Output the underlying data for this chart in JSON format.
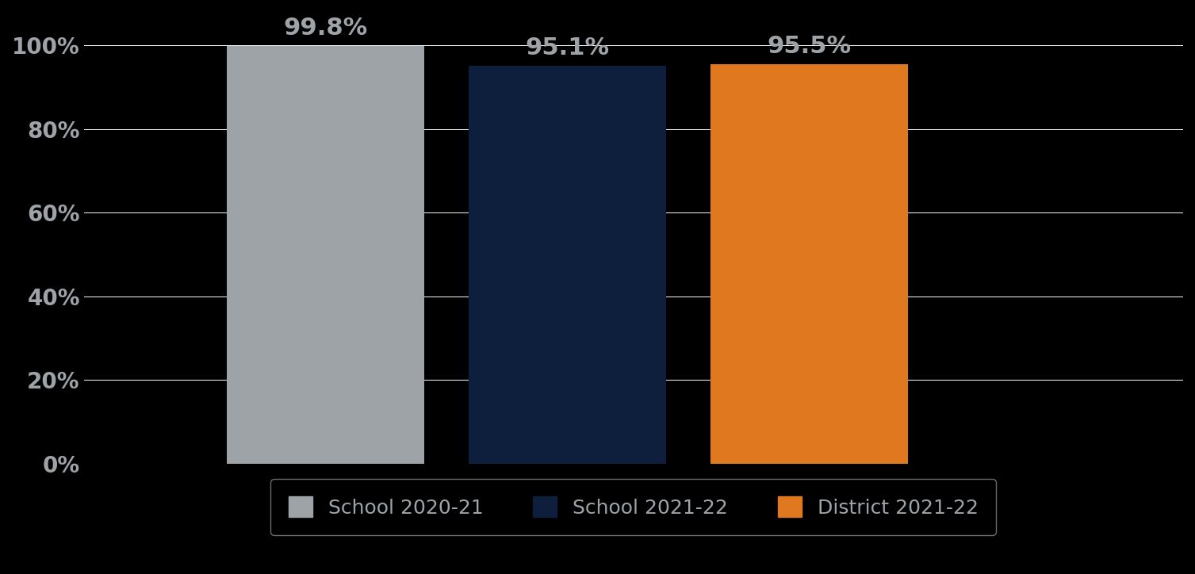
{
  "categories": [
    "School 2020-21",
    "School 2021-22",
    "District 2021-22"
  ],
  "values": [
    99.8,
    95.1,
    95.5
  ],
  "bar_colors": [
    "#9EA3A8",
    "#0D1F3C",
    "#E07820"
  ],
  "label_color": "#9EA3A8",
  "background_color": "#000000",
  "text_color": "#9EA3A8",
  "grid_color": "#ffffff",
  "ylim": [
    0,
    100
  ],
  "yticks": [
    0,
    20,
    40,
    60,
    80,
    100
  ],
  "ytick_labels": [
    "0%",
    "20%",
    "40%",
    "60%",
    "80%",
    "100%"
  ],
  "bar_label_fontsize": 22,
  "tick_fontsize": 20,
  "legend_fontsize": 18,
  "bar_width": 0.18,
  "bar_positions": [
    0.22,
    0.44,
    0.66
  ],
  "xlim": [
    0,
    1.0
  ]
}
